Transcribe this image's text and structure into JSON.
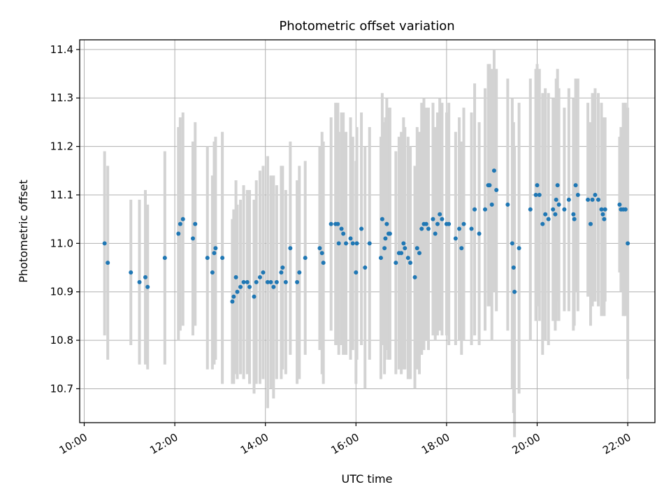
{
  "chart_data": {
    "type": "scatter",
    "title": "Photometric offset variation",
    "xlabel": "UTC time",
    "ylabel": "Photometric offset",
    "x_unit": "hours UTC",
    "xlim": [
      9.9,
      22.6
    ],
    "ylim": [
      10.63,
      11.42
    ],
    "x_ticks": [
      10,
      12,
      14,
      16,
      18,
      20,
      22
    ],
    "x_tick_labels": [
      "10:00",
      "12:00",
      "14:00",
      "16:00",
      "18:00",
      "20:00",
      "22:00"
    ],
    "y_ticks": [
      10.7,
      10.8,
      10.9,
      11.0,
      11.1,
      11.2,
      11.3,
      11.4
    ],
    "y_tick_labels": [
      "10.7",
      "10.8",
      "10.9",
      "11.0",
      "11.1",
      "11.2",
      "11.3",
      "11.4"
    ],
    "grid": true,
    "colors": {
      "point": "#1f77b4",
      "errorbar": "#d3d3d3",
      "grid": "#b0b0b0"
    },
    "series": [
      {
        "points": [
          [
            10.45,
            11.0,
            0.19
          ],
          [
            10.52,
            10.96,
            0.2
          ],
          [
            11.03,
            10.94,
            0.15
          ],
          [
            11.22,
            10.92,
            0.17
          ],
          [
            11.35,
            10.93,
            0.18
          ],
          [
            11.4,
            10.91,
            0.17
          ],
          [
            11.78,
            10.97,
            0.22
          ],
          [
            12.08,
            11.02,
            0.22
          ],
          [
            12.12,
            11.04,
            0.22
          ],
          [
            12.18,
            11.05,
            0.22
          ],
          [
            12.4,
            11.01,
            0.2
          ],
          [
            12.45,
            11.04,
            0.21
          ],
          [
            12.72,
            10.97,
            0.23
          ],
          [
            12.83,
            10.94,
            0.2
          ],
          [
            12.87,
            10.98,
            0.23
          ],
          [
            12.9,
            10.99,
            0.23
          ],
          [
            13.05,
            10.97,
            0.26
          ],
          [
            13.27,
            10.88,
            0.17
          ],
          [
            13.3,
            10.89,
            0.18
          ],
          [
            13.35,
            10.93,
            0.2
          ],
          [
            13.38,
            10.9,
            0.18
          ],
          [
            13.45,
            10.91,
            0.18
          ],
          [
            13.52,
            10.92,
            0.2
          ],
          [
            13.6,
            10.92,
            0.19
          ],
          [
            13.65,
            10.91,
            0.2
          ],
          [
            13.75,
            10.89,
            0.2
          ],
          [
            13.8,
            10.92,
            0.21
          ],
          [
            13.88,
            10.93,
            0.22
          ],
          [
            13.95,
            10.94,
            0.22
          ],
          [
            14.05,
            10.92,
            0.26
          ],
          [
            14.12,
            10.92,
            0.22
          ],
          [
            14.18,
            10.91,
            0.23
          ],
          [
            14.25,
            10.92,
            0.2
          ],
          [
            14.35,
            10.94,
            0.22
          ],
          [
            14.38,
            10.95,
            0.21
          ],
          [
            14.45,
            10.92,
            0.19
          ],
          [
            14.55,
            10.99,
            0.22
          ],
          [
            14.7,
            10.92,
            0.21
          ],
          [
            14.75,
            10.94,
            0.22
          ],
          [
            14.88,
            10.97,
            0.2
          ],
          [
            15.2,
            10.99,
            0.21
          ],
          [
            15.25,
            10.98,
            0.25
          ],
          [
            15.28,
            10.96,
            0.25
          ],
          [
            15.45,
            11.04,
            0.22
          ],
          [
            15.55,
            11.04,
            0.25
          ],
          [
            15.6,
            11.04,
            0.25
          ],
          [
            15.62,
            11.0,
            0.23
          ],
          [
            15.68,
            11.03,
            0.24
          ],
          [
            15.72,
            11.02,
            0.25
          ],
          [
            15.78,
            11.0,
            0.23
          ],
          [
            15.88,
            11.01,
            0.25
          ],
          [
            15.93,
            11.0,
            0.22
          ],
          [
            16.0,
            10.94,
            0.23
          ],
          [
            16.02,
            11.0,
            0.24
          ],
          [
            16.12,
            11.03,
            0.24
          ],
          [
            16.2,
            10.95,
            0.25
          ],
          [
            16.3,
            11.0,
            0.24
          ],
          [
            16.55,
            10.97,
            0.25
          ],
          [
            16.58,
            11.05,
            0.26
          ],
          [
            16.63,
            10.99,
            0.26
          ],
          [
            16.65,
            11.01,
            0.25
          ],
          [
            16.68,
            11.04,
            0.26
          ],
          [
            16.72,
            11.02,
            0.26
          ],
          [
            16.75,
            11.02,
            0.26
          ],
          [
            16.88,
            10.96,
            0.23
          ],
          [
            16.95,
            10.98,
            0.24
          ],
          [
            17.0,
            10.98,
            0.25
          ],
          [
            17.05,
            11.0,
            0.26
          ],
          [
            17.08,
            10.99,
            0.25
          ],
          [
            17.15,
            10.97,
            0.25
          ],
          [
            17.2,
            10.96,
            0.24
          ],
          [
            17.3,
            10.93,
            0.23
          ],
          [
            17.35,
            10.99,
            0.25
          ],
          [
            17.4,
            10.98,
            0.25
          ],
          [
            17.45,
            11.03,
            0.26
          ],
          [
            17.5,
            11.04,
            0.26
          ],
          [
            17.55,
            11.04,
            0.24
          ],
          [
            17.6,
            11.03,
            0.25
          ],
          [
            17.7,
            11.05,
            0.24
          ],
          [
            17.75,
            11.02,
            0.22
          ],
          [
            17.8,
            11.04,
            0.23
          ],
          [
            17.85,
            11.06,
            0.24
          ],
          [
            17.9,
            11.05,
            0.24
          ],
          [
            18.0,
            11.04,
            0.23
          ],
          [
            18.05,
            11.04,
            0.25
          ],
          [
            18.2,
            11.01,
            0.22
          ],
          [
            18.28,
            11.03,
            0.23
          ],
          [
            18.33,
            10.99,
            0.22
          ],
          [
            18.38,
            11.04,
            0.24
          ],
          [
            18.55,
            11.03,
            0.24
          ],
          [
            18.62,
            11.07,
            0.26
          ],
          [
            18.72,
            11.02,
            0.23
          ],
          [
            18.85,
            11.07,
            0.25
          ],
          [
            18.92,
            11.12,
            0.25
          ],
          [
            18.95,
            11.12,
            0.25
          ],
          [
            19.0,
            11.08,
            0.28
          ],
          [
            19.05,
            11.15,
            0.25
          ],
          [
            19.1,
            11.11,
            0.25
          ],
          [
            19.35,
            11.08,
            0.26
          ],
          [
            19.45,
            11.0,
            0.3
          ],
          [
            19.48,
            10.95,
            0.3
          ],
          [
            19.5,
            10.9,
            0.3
          ],
          [
            19.6,
            10.99,
            0.3
          ],
          [
            19.85,
            11.07,
            0.27
          ],
          [
            19.97,
            11.1,
            0.26
          ],
          [
            20.0,
            11.12,
            0.25
          ],
          [
            20.05,
            11.1,
            0.26
          ],
          [
            20.12,
            11.04,
            0.27
          ],
          [
            20.18,
            11.06,
            0.26
          ],
          [
            20.25,
            11.05,
            0.26
          ],
          [
            20.35,
            11.07,
            0.23
          ],
          [
            20.4,
            11.06,
            0.24
          ],
          [
            20.42,
            11.09,
            0.25
          ],
          [
            20.45,
            11.12,
            0.24
          ],
          [
            20.48,
            11.08,
            0.24
          ],
          [
            20.6,
            11.07,
            0.21
          ],
          [
            20.7,
            11.09,
            0.23
          ],
          [
            20.8,
            11.06,
            0.24
          ],
          [
            20.82,
            11.05,
            0.22
          ],
          [
            20.85,
            11.12,
            0.22
          ],
          [
            20.9,
            11.1,
            0.24
          ],
          [
            21.12,
            11.09,
            0.2
          ],
          [
            21.18,
            11.04,
            0.21
          ],
          [
            21.22,
            11.09,
            0.22
          ],
          [
            21.28,
            11.1,
            0.22
          ],
          [
            21.35,
            11.09,
            0.22
          ],
          [
            21.42,
            11.07,
            0.22
          ],
          [
            21.45,
            11.06,
            0.2
          ],
          [
            21.48,
            11.05,
            0.2
          ],
          [
            21.5,
            11.07,
            0.19
          ],
          [
            21.82,
            11.08,
            0.14
          ],
          [
            21.85,
            11.07,
            0.17
          ],
          [
            21.9,
            11.07,
            0.22
          ],
          [
            21.95,
            11.07,
            0.22
          ],
          [
            22.0,
            11.0,
            0.28
          ]
        ]
      }
    ]
  }
}
